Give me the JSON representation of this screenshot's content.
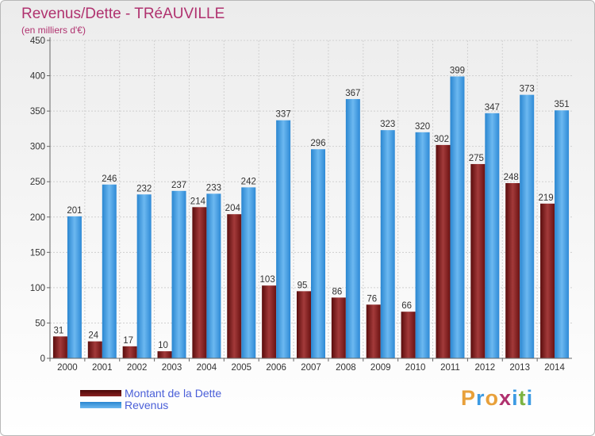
{
  "chart_data": {
    "type": "bar",
    "title": "Revenus/Dette - TRéAUVILLE",
    "subtitle": "(en milliers d'€)",
    "categories": [
      "2000",
      "2001",
      "2002",
      "2003",
      "2004",
      "2005",
      "2006",
      "2007",
      "2008",
      "2009",
      "2010",
      "2011",
      "2012",
      "2013",
      "2014"
    ],
    "series": [
      {
        "name": "Montant de la Dette",
        "color": "#7a1a1a",
        "values": [
          31,
          24,
          17,
          10,
          214,
          204,
          103,
          95,
          86,
          76,
          66,
          302,
          275,
          248,
          219
        ]
      },
      {
        "name": "Revenus",
        "color": "#3d9be3",
        "values": [
          201,
          246,
          232,
          237,
          233,
          242,
          337,
          296,
          367,
          323,
          320,
          399,
          347,
          373,
          351
        ]
      }
    ],
    "ylim": [
      0,
      450
    ],
    "yticks": [
      0,
      50,
      100,
      150,
      200,
      250,
      300,
      350,
      400,
      450
    ],
    "grid": true,
    "legend_position": "bottom-left"
  },
  "logo": {
    "text": "Proxiti",
    "colors": [
      "#e8a03a",
      "#3d9be3",
      "#e8a03a",
      "#b0326f",
      "#3d9be3",
      "#7cb342",
      "#3d9be3"
    ]
  }
}
